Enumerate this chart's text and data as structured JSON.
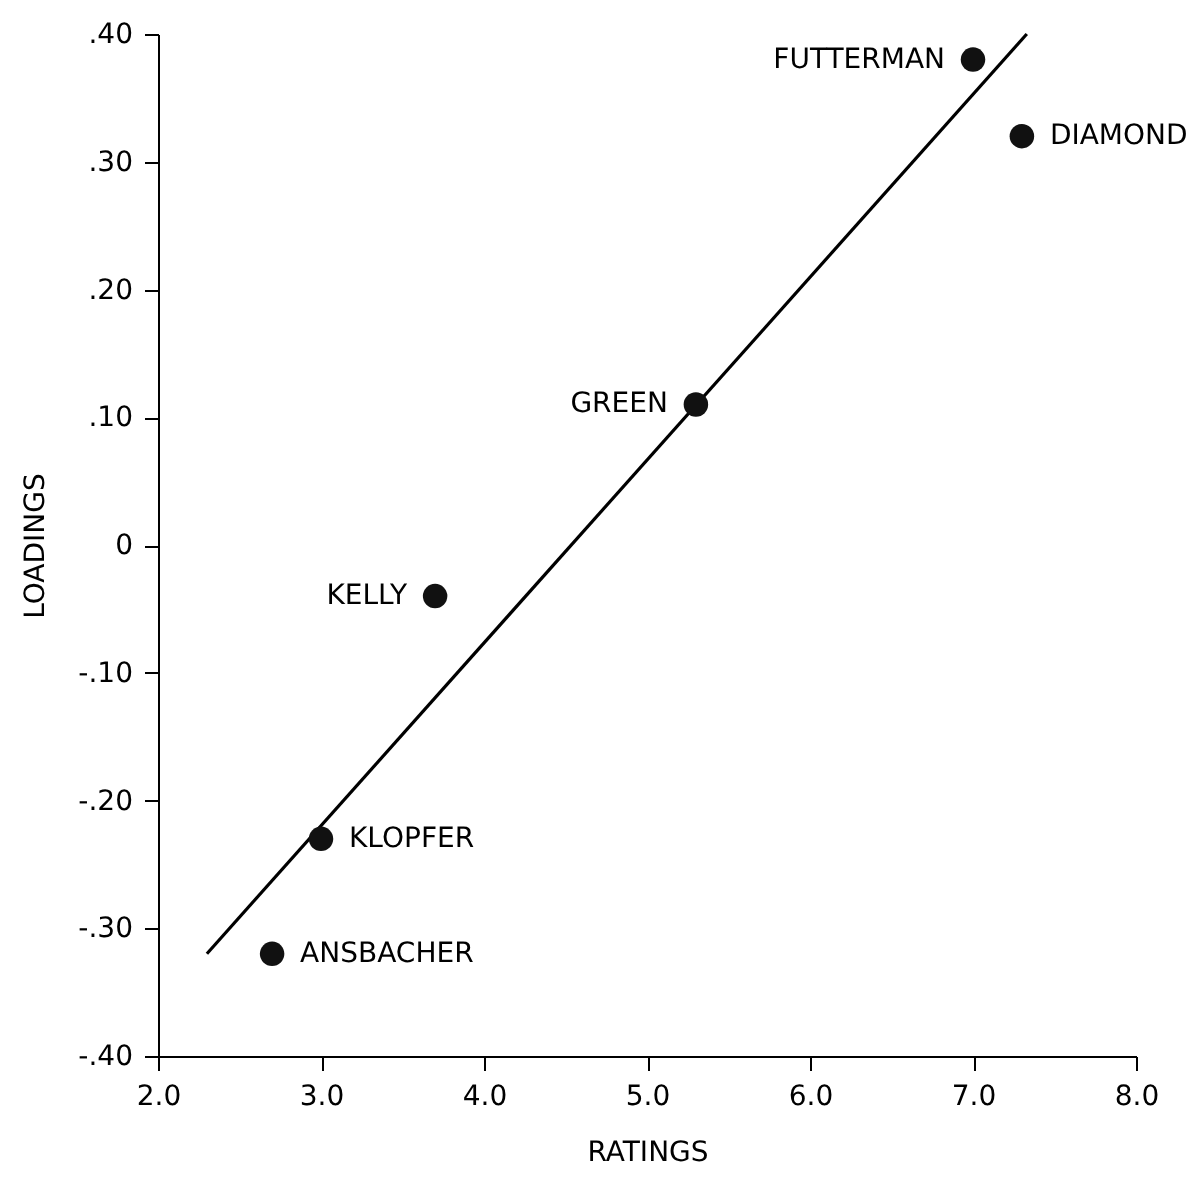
{
  "chart_data": {
    "type": "scatter",
    "xlabel": "RATINGS",
    "ylabel": "LOADINGS",
    "xlim": [
      2.0,
      8.0
    ],
    "ylim": [
      -0.4,
      0.4
    ],
    "xticks": [
      {
        "value": 2,
        "label": "2.0"
      },
      {
        "value": 3,
        "label": "3.0"
      },
      {
        "value": 4,
        "label": "4.0"
      },
      {
        "value": 5,
        "label": "5.0"
      },
      {
        "value": 6,
        "label": "6.0"
      },
      {
        "value": 7,
        "label": "7.0"
      },
      {
        "value": 8,
        "label": "8.0"
      }
    ],
    "yticks": [
      {
        "value": -0.4,
        "label": "-.40"
      },
      {
        "value": -0.3,
        "label": "-.30"
      },
      {
        "value": -0.2,
        "label": "-.20"
      },
      {
        "value": -0.1,
        "label": "-.10"
      },
      {
        "value": 0,
        "label": "0"
      },
      {
        "value": 0.1,
        "label": ".10"
      },
      {
        "value": 0.2,
        "label": ".20"
      },
      {
        "value": 0.3,
        "label": ".30"
      },
      {
        "value": 0.4,
        "label": ".40"
      }
    ],
    "grid": false,
    "series": [
      {
        "type": "line",
        "color": "#000000",
        "line_style": "solid",
        "marker": "none",
        "x": [
          2.3,
          7.33
        ],
        "values": [
          -0.32,
          0.4
        ]
      },
      {
        "color": "#111111",
        "marker": "circle",
        "x": [
          7.0,
          7.3,
          5.3,
          3.7,
          3.0,
          2.7
        ],
        "values": [
          0.38,
          0.32,
          0.11,
          -0.04,
          -0.23,
          -0.32
        ]
      }
    ],
    "annotations": [
      {
        "text": "FUTTERMAN",
        "x": 7.0,
        "y": 0.38
      },
      {
        "text": "DIAMOND",
        "x": 7.3,
        "y": 0.32
      },
      {
        "text": "GREEN",
        "x": 5.3,
        "y": 0.11
      },
      {
        "text": "KELLY",
        "x": 3.7,
        "y": -0.04
      },
      {
        "text": "KLOPFER",
        "x": 3.0,
        "y": -0.23
      },
      {
        "text": "ANSBACHER",
        "x": 2.7,
        "y": -0.32
      }
    ]
  }
}
